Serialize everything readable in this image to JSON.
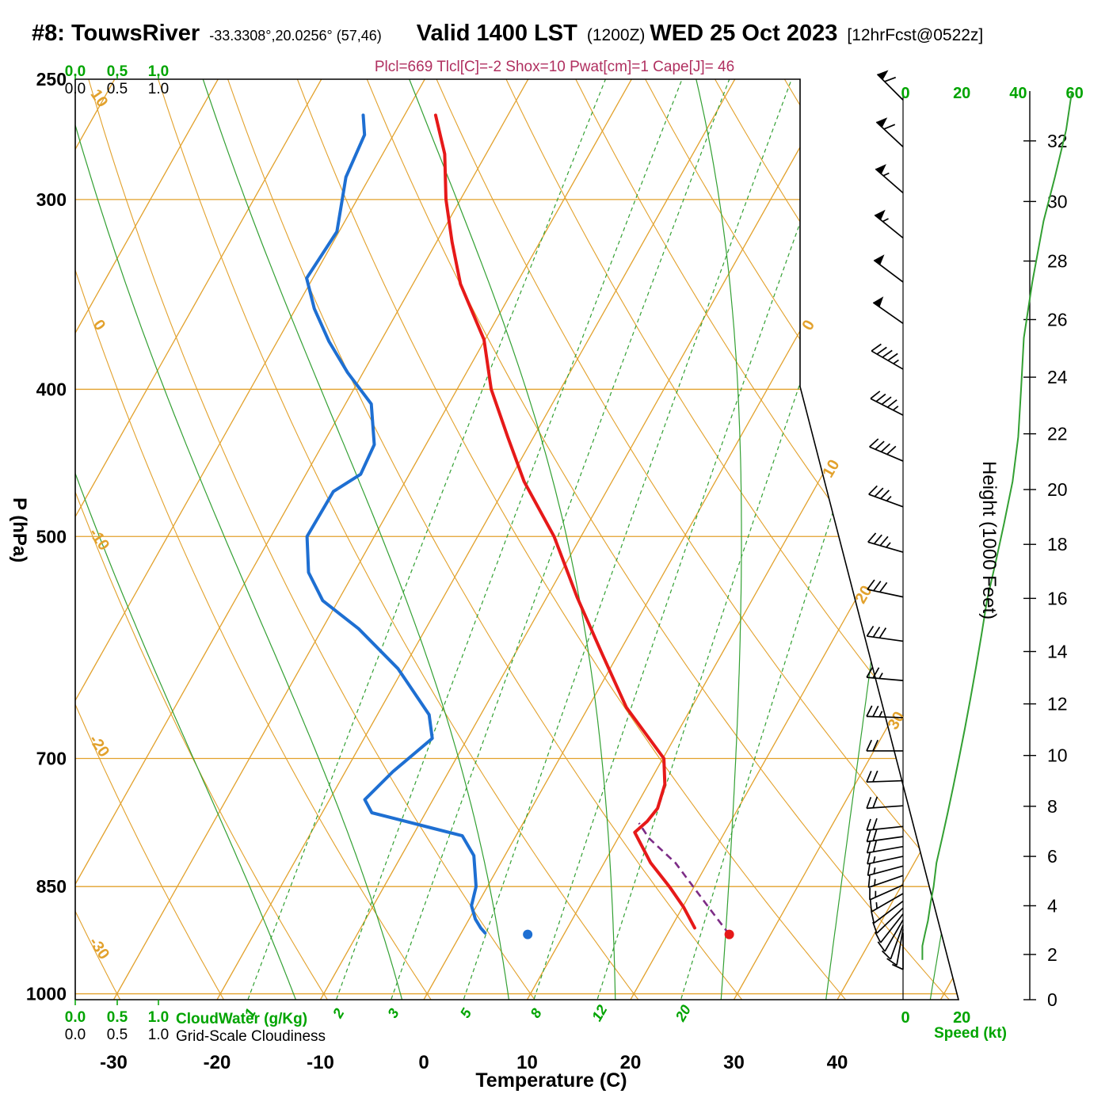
{
  "header": {
    "station_title": "#8: TouwsRiver",
    "station_coords": "-33.3308°,20.0256° (57,46)",
    "valid_time": "Valid 1400 LST",
    "valid_zulu": "(1200Z)",
    "valid_date": "WED 25 Oct 2023",
    "forecast_tag": "[12hrFcst@0522z]",
    "parameters": "Plcl=669 Tlcl[C]=-2 Shox=10 Pwat[cm]=1 Cape[J]= 46"
  },
  "axes": {
    "pressure_axis_label": "P (hPa)",
    "temperature_axis_label": "Temperature (C)",
    "height_axis_label": "Height (1000 Feet)",
    "speed_axis_label": "Speed (kt)",
    "cloudwater_axis_label": "CloudWater (g/Kg)",
    "cloudiness_axis_label": "Grid-Scale Cloudiness",
    "pressure_ticks": [
      250,
      300,
      400,
      500,
      700,
      850,
      1000
    ],
    "temperature_ticks": [
      -30,
      -20,
      -10,
      0,
      10,
      20,
      30,
      40
    ],
    "height_ticks": [
      0,
      2,
      4,
      6,
      8,
      10,
      12,
      14,
      16,
      18,
      20,
      22,
      24,
      26,
      28,
      30,
      32
    ],
    "speed_ticks_top": [
      0,
      20,
      40,
      60
    ],
    "speed_ticks_bottom": [
      0,
      20
    ],
    "cloudwater_ticks": [
      "0.0",
      "0.5",
      "1.0"
    ]
  },
  "background": {
    "isotherm_step_c": 10,
    "isotherm_range_c": [
      -100,
      50
    ],
    "isotherm_diagonal_labels": [
      0,
      10,
      20,
      30
    ],
    "dry_adiabat_step_c": 10,
    "dry_adiabat_range_c": [
      -40,
      120
    ],
    "dry_adiabat_left_labels": [
      10,
      0,
      -10,
      -20,
      -30
    ],
    "mixing_ratio_lines_gkg": [
      1,
      2,
      3,
      5,
      8,
      12,
      20
    ],
    "moist_adiabat_surface_temps_c": [
      -10,
      0,
      10,
      20,
      30,
      40,
      50
    ]
  },
  "chart_data": {
    "type": "line",
    "title": "Skew-T / Log-P sounding, #8: TouwsRiver",
    "x_axis": {
      "label": "Temperature (C)",
      "range": [
        -40,
        45
      ]
    },
    "y_axis": {
      "label": "P (hPa)",
      "range": [
        1010,
        250
      ],
      "scale": "log"
    },
    "temperature_profile_p_t": [
      [
        264,
        -47
      ],
      [
        280,
        -44
      ],
      [
        300,
        -41.4
      ],
      [
        320,
        -38.5
      ],
      [
        341,
        -35.4
      ],
      [
        371,
        -30.1
      ],
      [
        400,
        -26.7
      ],
      [
        430,
        -22.5
      ],
      [
        460,
        -18.5
      ],
      [
        500,
        -12.6
      ],
      [
        548,
        -7.1
      ],
      [
        598,
        -1.5
      ],
      [
        648,
        3.7
      ],
      [
        700,
        10.1
      ],
      [
        728,
        11.6
      ],
      [
        755,
        12.2
      ],
      [
        770,
        11.9
      ],
      [
        783,
        11.3
      ],
      [
        820,
        14.5
      ],
      [
        850,
        17.6
      ],
      [
        877,
        20.1
      ],
      [
        905,
        22.3
      ]
    ],
    "dewpoint_profile_p_t": [
      [
        264,
        -54
      ],
      [
        272,
        -52.8
      ],
      [
        290,
        -52.3
      ],
      [
        315,
        -50.2
      ],
      [
        338,
        -50.6
      ],
      [
        354,
        -48.2
      ],
      [
        372,
        -45
      ],
      [
        390,
        -41.5
      ],
      [
        409,
        -37.5
      ],
      [
        435,
        -35
      ],
      [
        455,
        -34.7
      ],
      [
        467,
        -36.4
      ],
      [
        500,
        -36.5
      ],
      [
        528,
        -34.4
      ],
      [
        551,
        -31.5
      ],
      [
        575,
        -26.5
      ],
      [
        611,
        -20.5
      ],
      [
        655,
        -15
      ],
      [
        679,
        -13.4
      ],
      [
        714,
        -15.4
      ],
      [
        745,
        -16.6
      ],
      [
        760,
        -15.2
      ],
      [
        778,
        -8.5
      ],
      [
        787,
        -5.2
      ],
      [
        811,
        -3
      ],
      [
        850,
        -1.1
      ],
      [
        875,
        -0.5
      ],
      [
        893,
        0.6
      ],
      [
        905,
        1.6
      ],
      [
        912,
        2.3
      ]
    ],
    "parcel_path_p_t": [
      [
        914,
        26
      ],
      [
        880,
        22.8
      ],
      [
        850,
        19.9
      ],
      [
        820,
        16.9
      ],
      [
        790,
        13
      ],
      [
        772,
        11.2
      ]
    ],
    "surface_temperature_point_p_t": [
      914,
      26
    ],
    "surface_dewpoint_point_p_t": [
      914,
      6.5
    ],
    "wind_barbs_p_dir_spd": [
      [
        258,
        315,
        60
      ],
      [
        277,
        313,
        60
      ],
      [
        297,
        311,
        55
      ],
      [
        318,
        309,
        55
      ],
      [
        340,
        307,
        50
      ],
      [
        362,
        305,
        50
      ],
      [
        388,
        300,
        45
      ],
      [
        416,
        297,
        45
      ],
      [
        446,
        293,
        40
      ],
      [
        478,
        290,
        35
      ],
      [
        512,
        286,
        35
      ],
      [
        548,
        282,
        30
      ],
      [
        586,
        278,
        28
      ],
      [
        622,
        275,
        25
      ],
      [
        658,
        272,
        25
      ],
      [
        692,
        270,
        22
      ],
      [
        724,
        268,
        20
      ],
      [
        752,
        266,
        20
      ],
      [
        776,
        264,
        18
      ],
      [
        788,
        262,
        18
      ],
      [
        800,
        260,
        18
      ],
      [
        812,
        258,
        15
      ],
      [
        824,
        255,
        15
      ],
      [
        836,
        251,
        15
      ],
      [
        848,
        246,
        15
      ],
      [
        859,
        240,
        15
      ],
      [
        869,
        233,
        12
      ],
      [
        878,
        226,
        12
      ],
      [
        886,
        218,
        12
      ],
      [
        894,
        210,
        10
      ],
      [
        901,
        200,
        10
      ],
      [
        907,
        190,
        10
      ],
      [
        912,
        180,
        8
      ]
    ],
    "speed_profile_p_kt": [
      [
        950,
        6
      ],
      [
        930,
        6
      ],
      [
        912,
        7
      ],
      [
        895,
        8
      ],
      [
        870,
        9
      ],
      [
        850,
        10
      ],
      [
        820,
        11
      ],
      [
        790,
        13
      ],
      [
        760,
        15
      ],
      [
        730,
        17
      ],
      [
        700,
        19
      ],
      [
        670,
        21
      ],
      [
        640,
        23
      ],
      [
        610,
        25
      ],
      [
        580,
        27
      ],
      [
        550,
        29
      ],
      [
        520,
        32
      ],
      [
        490,
        35
      ],
      [
        460,
        38
      ],
      [
        430,
        40
      ],
      [
        400,
        41
      ],
      [
        370,
        42
      ],
      [
        340,
        45
      ],
      [
        310,
        49
      ],
      [
        290,
        53
      ],
      [
        270,
        57
      ],
      [
        255,
        59
      ]
    ]
  },
  "colors": {
    "isotherm_orange": "#e2a12c",
    "green_lines": "#33a033",
    "green_text": "#00a400",
    "temperature_red": "#e61919",
    "dewpoint_blue": "#1e6fd2",
    "parcel_purple": "#7d2c86",
    "parameter_text": "#b03060",
    "axis_black": "#000000"
  }
}
